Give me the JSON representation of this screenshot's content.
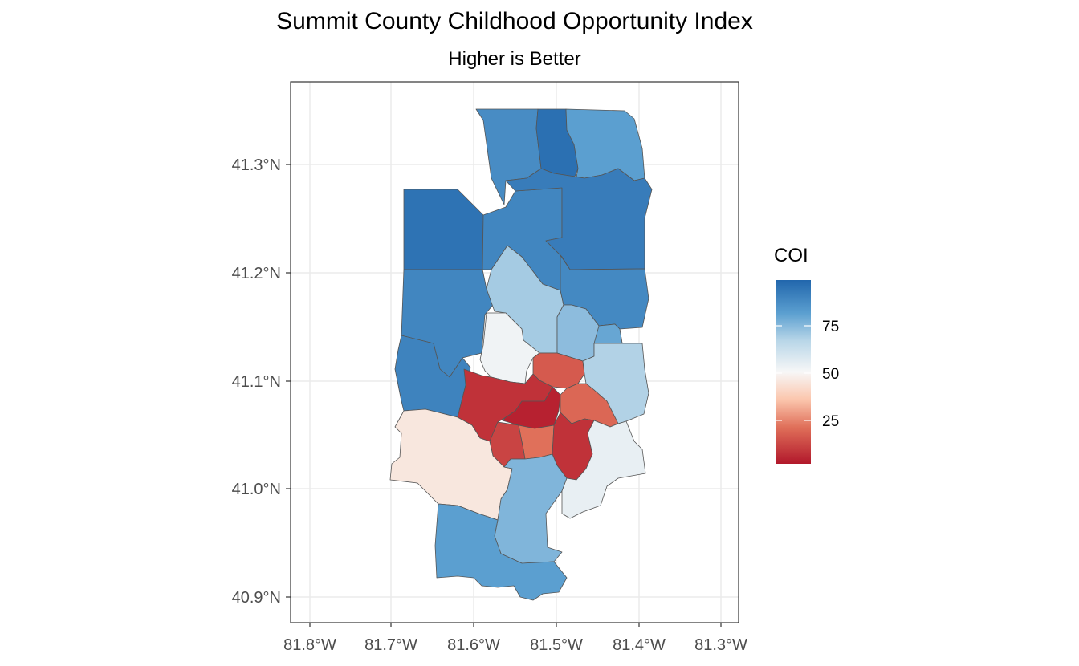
{
  "title": "Summit County Childhood Opportunity Index",
  "subtitle": "Higher is Better",
  "axes": {
    "x_ticks": [
      "81.8°W",
      "81.7°W",
      "81.6°W",
      "81.5°W",
      "81.4°W",
      "81.3°W"
    ],
    "y_ticks": [
      "41.3°N",
      "41.2°N",
      "41.1°N",
      "41.0°N",
      "40.9°N"
    ]
  },
  "legend": {
    "title": "COI",
    "labels": [
      "75",
      "50",
      "25"
    ],
    "colors": {
      "low": "#b2182b",
      "mid": "#f7f7f7",
      "high": "#2166ac"
    }
  },
  "map_data": {
    "type": "choropleth",
    "variable": "COI",
    "regions": [
      {
        "id": "north-west-top",
        "coi": 88
      },
      {
        "id": "north-center-top",
        "coi": 97
      },
      {
        "id": "north-east-top",
        "coi": 82
      },
      {
        "id": "northwest",
        "coi": 96
      },
      {
        "id": "north-center",
        "coi": 90
      },
      {
        "id": "northeast",
        "coi": 93
      },
      {
        "id": "west-mid",
        "coi": 90
      },
      {
        "id": "center-north",
        "coi": 70
      },
      {
        "id": "east-mid",
        "coi": 89
      },
      {
        "id": "west-low",
        "coi": 91
      },
      {
        "id": "center-west-light",
        "coi": 52
      },
      {
        "id": "center-light-blue",
        "coi": 74
      },
      {
        "id": "east-small",
        "coi": 80
      },
      {
        "id": "center-east-orange",
        "coi": 15
      },
      {
        "id": "east-light",
        "coi": 68
      },
      {
        "id": "center-red",
        "coi": 6
      },
      {
        "id": "core-darkred",
        "coi": 2
      },
      {
        "id": "east-orange",
        "coi": 18
      },
      {
        "id": "south-center-red",
        "coi": 10
      },
      {
        "id": "south-center-orange",
        "coi": 20
      },
      {
        "id": "south-east-red",
        "coi": 6
      },
      {
        "id": "southwest",
        "coi": 45
      },
      {
        "id": "south-center",
        "coi": 76
      },
      {
        "id": "southeast",
        "coi": 54
      },
      {
        "id": "south",
        "coi": 82
      }
    ]
  }
}
